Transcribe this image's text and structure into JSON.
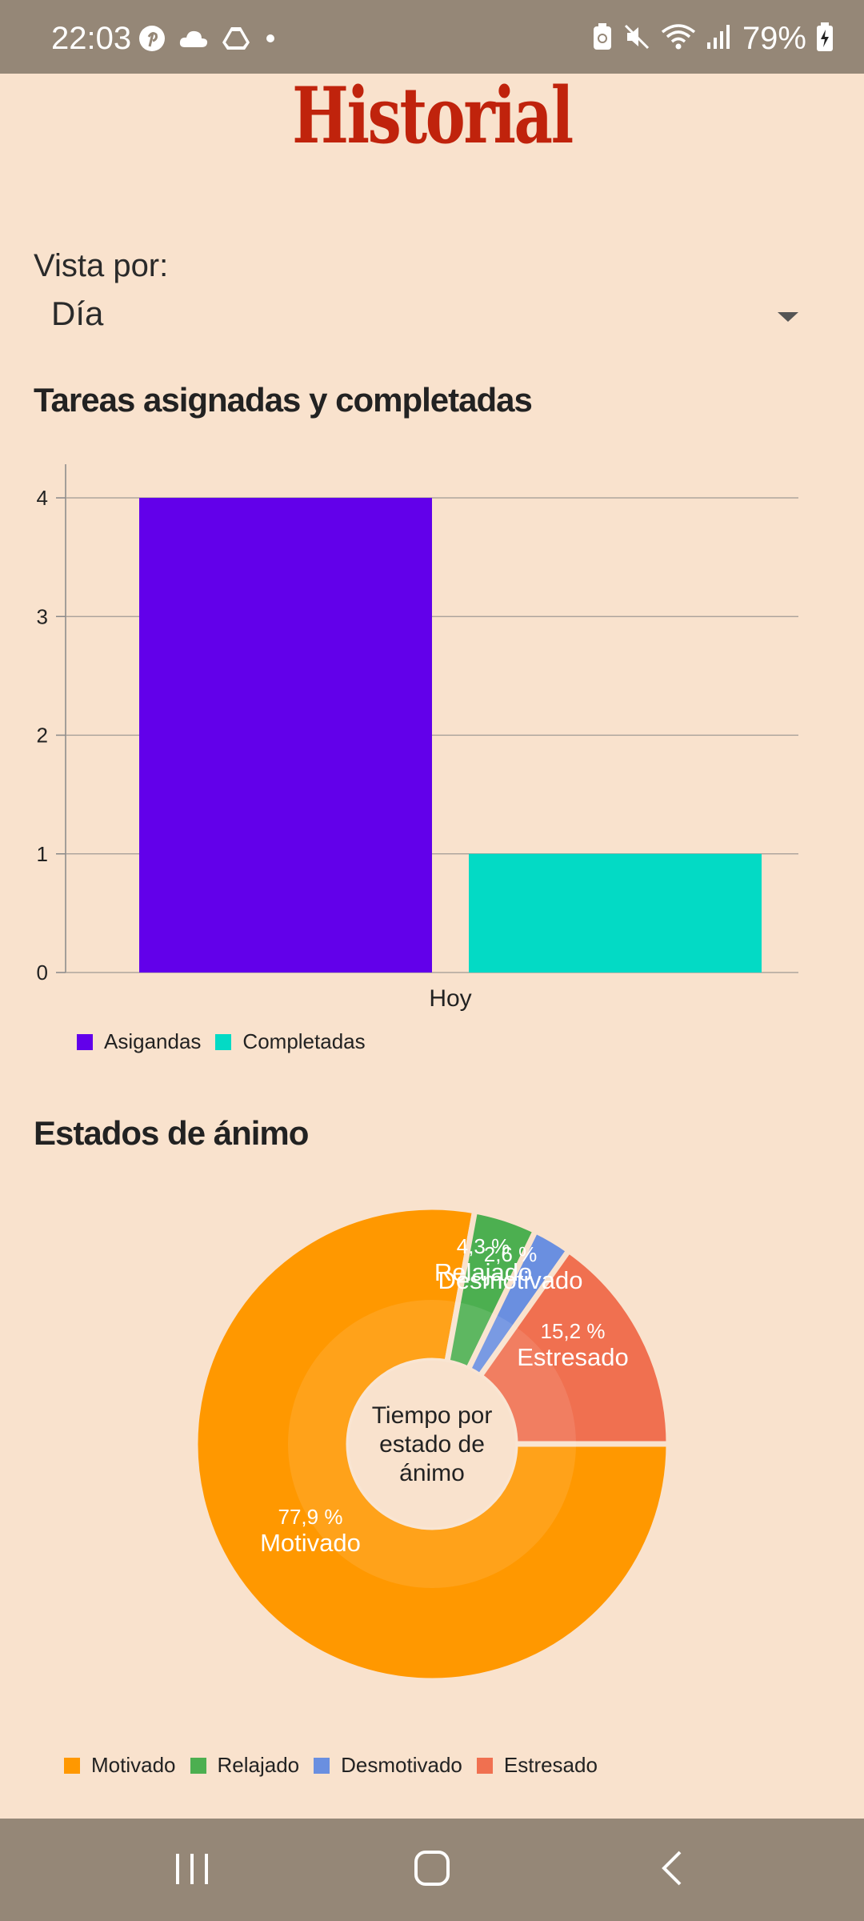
{
  "status_bar": {
    "time": "22:03",
    "battery": "79%",
    "left_icons": [
      "pinterest-icon",
      "cloud-icon",
      "drive-icon",
      "dot-icon"
    ],
    "right_icons": [
      "battery-saver-icon",
      "mute-icon",
      "wifi-icon",
      "signal-icon",
      "battery-charging-icon"
    ]
  },
  "page": {
    "title": "Historial"
  },
  "vista": {
    "label": "Vista por:",
    "value": "Día"
  },
  "bar_section": {
    "title": "Tareas asignadas y completadas"
  },
  "pie_section": {
    "title": "Estados de ánimo"
  },
  "colors": {
    "background": "#f9e2cd",
    "accent_title": "#c0230c",
    "asignadas": "#6200ea",
    "completadas": "#03dac5",
    "motivado": "#ff9800",
    "relajado": "#4caf50",
    "desmotivado": "#6a8fe0",
    "estresado": "#f07050"
  },
  "chart_data": [
    {
      "type": "bar",
      "categories": [
        "Hoy"
      ],
      "series": [
        {
          "name": "Asigandas",
          "values": [
            4
          ]
        },
        {
          "name": "Completadas",
          "values": [
            1
          ]
        }
      ],
      "ylim": [
        0,
        4
      ],
      "yticks": [
        "0",
        "1",
        "2",
        "3",
        "4"
      ],
      "grid": true,
      "legend_position": "bottom-left"
    },
    {
      "type": "pie",
      "center_label": "Tiempo por estado de ánimo",
      "slices": [
        {
          "name": "Motivado",
          "value": 77.9,
          "label": "77,9 %"
        },
        {
          "name": "Relajado",
          "value": 4.3,
          "label": "4,3 %"
        },
        {
          "name": "Desmotivado",
          "value": 2.6,
          "label": "2,6 %"
        },
        {
          "name": "Estresado",
          "value": 15.2,
          "label": "15,2 %"
        }
      ],
      "legend_position": "bottom-left"
    }
  ],
  "nav_bar": {
    "items": [
      "recent-apps-icon",
      "home-icon",
      "back-icon"
    ]
  }
}
